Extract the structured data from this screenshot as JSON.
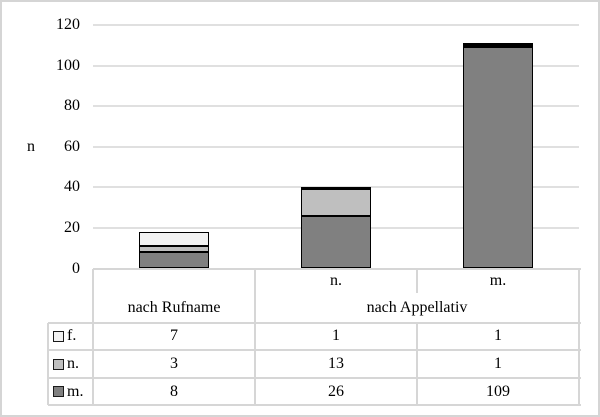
{
  "window": {
    "background": "#ffffff",
    "frame_border_color": "#d5d5d5"
  },
  "chart_data": {
    "type": "bar",
    "stacked": true,
    "title": "",
    "ylabel": "n",
    "xlabel": "",
    "ylim": [
      0,
      120
    ],
    "yticks": [
      0,
      20,
      40,
      60,
      80,
      100,
      120
    ],
    "grid": true,
    "gridline_color": "#e0e0e0",
    "bar_border_color": "#000000",
    "legend_position": "data-table-left",
    "categories": [
      "nach Rufname",
      "nach Appellativ n.",
      "nach Appellativ m."
    ],
    "group_axis": [
      {
        "label": "nach Rufname",
        "sublabels": [
          ""
        ]
      },
      {
        "label": "nach Appellativ",
        "sublabels": [
          "n.",
          "m."
        ]
      }
    ],
    "series": [
      {
        "name": "f.",
        "color": "#f2f2f2",
        "values": [
          7,
          1,
          1
        ]
      },
      {
        "name": "n.",
        "color": "#bfbfbf",
        "values": [
          3,
          13,
          1
        ]
      },
      {
        "name": "m.",
        "color": "#808080",
        "values": [
          8,
          26,
          109
        ]
      }
    ],
    "stack_order_bottom_to_top": [
      "m.",
      "n.",
      "f."
    ]
  },
  "data_table": {
    "legend_rows": [
      {
        "label": "f.",
        "swatch_color": "#f2f2f2"
      },
      {
        "label": "n.",
        "swatch_color": "#bfbfbf"
      },
      {
        "label": "m.",
        "swatch_color": "#808080"
      }
    ],
    "header_sublabels": [
      "",
      "n.",
      "m."
    ],
    "header_groups": [
      {
        "label": "nach Rufname",
        "span": 1
      },
      {
        "label": "nach Appellativ",
        "span": 2
      }
    ],
    "rows": [
      {
        "label": "f.",
        "values": [
          7,
          1,
          1
        ]
      },
      {
        "label": "n.",
        "values": [
          3,
          13,
          1
        ]
      },
      {
        "label": "m.",
        "values": [
          8,
          26,
          109
        ]
      }
    ]
  }
}
